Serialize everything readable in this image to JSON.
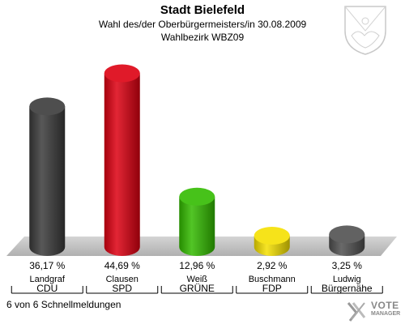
{
  "header": {
    "title": "Stadt Bielefeld",
    "subtitle": "Wahl des/der Oberbürgermeisters/in 30.08.2009",
    "district": "Wahlbezirk WBZ09"
  },
  "chart_data": {
    "type": "bar",
    "categories": [
      "CDU",
      "SPD",
      "GRÜNE",
      "FDP",
      "Bürgernähe"
    ],
    "candidates": [
      "Landgraf",
      "Clausen",
      "Weiß",
      "Buschmann",
      "Ludwig"
    ],
    "values": [
      36.17,
      44.69,
      12.96,
      2.92,
      3.25
    ],
    "value_labels": [
      "36,17 %",
      "44,69 %",
      "12,96 %",
      "2,92 %",
      "3,25 %"
    ],
    "colors": [
      "#3a3a3a",
      "#dd0011",
      "#33bb00",
      "#f5e000",
      "#505050"
    ],
    "ylim": [
      0,
      50
    ]
  },
  "footer": {
    "status": "6 von 6 Schnellmeldungen"
  },
  "logo": {
    "name": "VOTE",
    "sub": "MANAGER"
  },
  "icons": {
    "crest": "coat-of-arms-icon",
    "logo": "vote-manager-logo-icon"
  }
}
